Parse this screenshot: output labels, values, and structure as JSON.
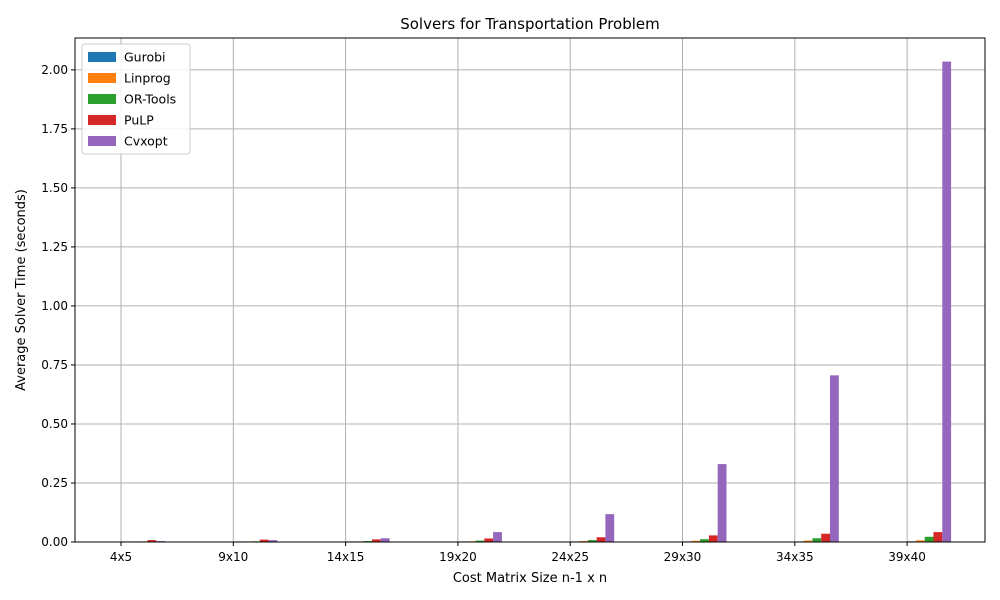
{
  "chart_data": {
    "type": "bar",
    "title": "Solvers for Transportation Problem",
    "xlabel": "Cost Matrix Size n-1 x n",
    "ylabel": "Average Solver Time (seconds)",
    "categories": [
      "4x5",
      "9x10",
      "14x15",
      "19x20",
      "24x25",
      "29x30",
      "34x35",
      "39x40"
    ],
    "ylim": [
      0,
      2.135
    ],
    "yticks": [
      "0.00",
      "0.25",
      "0.50",
      "0.75",
      "1.00",
      "1.25",
      "1.50",
      "1.75",
      "2.00"
    ],
    "grid": true,
    "legend_position": "top-left",
    "series": [
      {
        "name": "Gurobi",
        "color": "#1f77b4",
        "values": [
          0.0005,
          0.0007,
          0.0009,
          0.0012,
          0.0015,
          0.002,
          0.0025,
          0.003
        ]
      },
      {
        "name": "Linprog",
        "color": "#ff7f0e",
        "values": [
          0.001,
          0.0015,
          0.002,
          0.003,
          0.004,
          0.005,
          0.006,
          0.007
        ]
      },
      {
        "name": "OR-Tools",
        "color": "#2ca02c",
        "values": [
          0.002,
          0.003,
          0.004,
          0.006,
          0.008,
          0.012,
          0.016,
          0.022
        ]
      },
      {
        "name": "PuLP",
        "color": "#d62728",
        "values": [
          0.008,
          0.01,
          0.011,
          0.015,
          0.02,
          0.028,
          0.035,
          0.042
        ]
      },
      {
        "name": "Cvxopt",
        "color": "#9467bd",
        "values": [
          0.004,
          0.008,
          0.016,
          0.042,
          0.118,
          0.33,
          0.706,
          2.035
        ]
      }
    ]
  }
}
